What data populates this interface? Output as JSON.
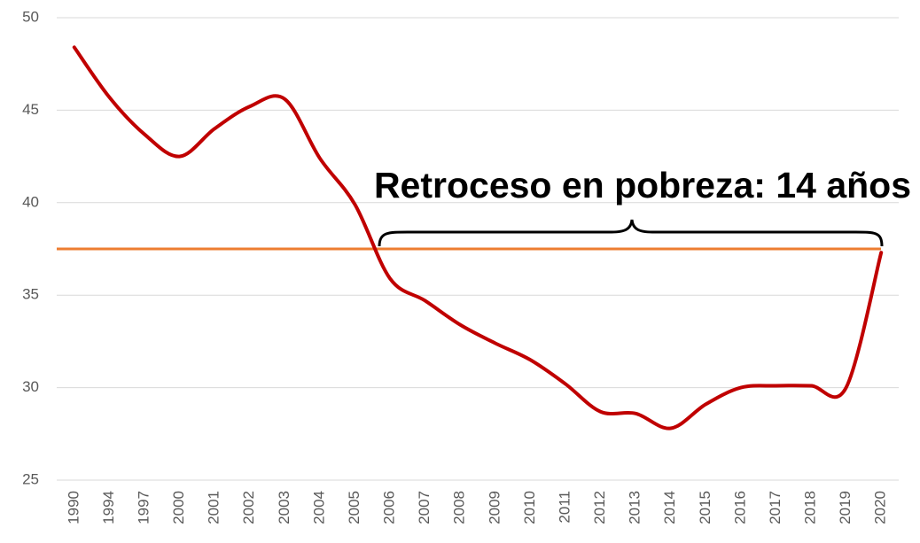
{
  "chart_data": {
    "type": "line",
    "categories": [
      "1990",
      "1994",
      "1997",
      "2000",
      "2001",
      "2002",
      "2003",
      "2004",
      "2005",
      "2006",
      "2007",
      "2008",
      "2009",
      "2010",
      "2011",
      "2012",
      "2013",
      "2014",
      "2015",
      "2016",
      "2017",
      "2018",
      "2019",
      "2020"
    ],
    "series": [
      {
        "color": "#c00000",
        "values": [
          48.4,
          45.7,
          43.7,
          42.5,
          44.0,
          45.2,
          45.6,
          42.4,
          39.9,
          35.9,
          34.7,
          33.4,
          32.4,
          31.5,
          30.2,
          28.7,
          28.6,
          27.8,
          29.1,
          30.0,
          30.1,
          30.1,
          30.0,
          37.3
        ]
      }
    ],
    "reference_line": {
      "value": 37.5,
      "color": "#ed7d31"
    },
    "annotation": "Retroceso en pobreza: 14 años",
    "ylim": [
      25,
      50
    ],
    "yticks": [
      25,
      30,
      35,
      40,
      45,
      50
    ],
    "grid": true
  }
}
